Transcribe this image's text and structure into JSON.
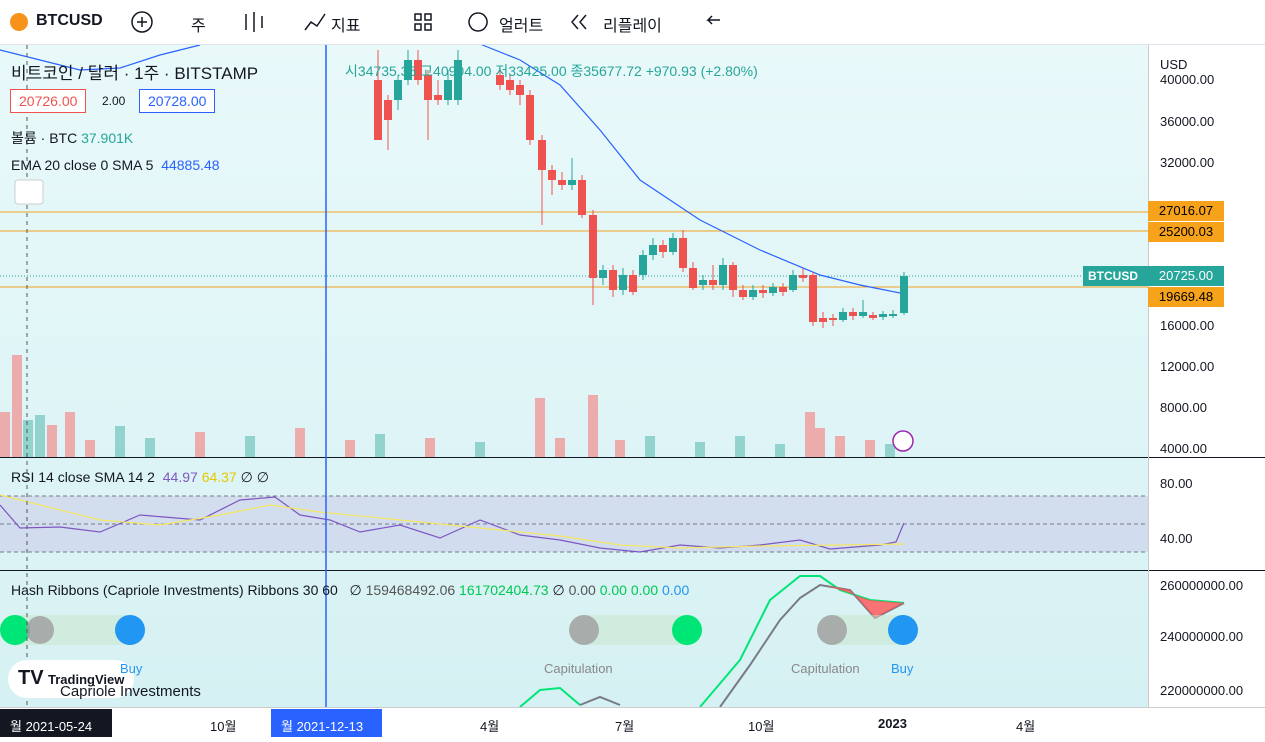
{
  "toolbar": {
    "symbol": "BTCUSD",
    "interval": "주",
    "indicators": "지표",
    "alerts": "얼러트",
    "replay": "리플레이"
  },
  "legend": {
    "title": "비트코인 / 달러 · 1주 · BITSTAMP",
    "open": "시34735.35",
    "high": "고40904.00",
    "low": "저33425.00",
    "close": "종35677.72",
    "change": "+970.93 (+2.80%)",
    "bid": "20726.00",
    "spread": "2.00",
    "ask": "20728.00",
    "volume_label": "볼륨 · BTC",
    "volume": "37.901K",
    "ema_label": "EMA 20 close 0 SMA 5",
    "ema": "44885.48"
  },
  "price_axis": {
    "currency": "USD",
    "ticks": [
      "40000.00",
      "36000.00",
      "32000.00",
      "16000.00",
      "12000.00",
      "8000.00",
      "4000.00"
    ],
    "levels": [
      "27016.07",
      "25200.03",
      "19669.48"
    ],
    "symbol_tag": "BTCUSD",
    "last_price": "20725.00"
  },
  "rsi": {
    "label": "RSI 14 close SMA 14 2",
    "value": "44.97",
    "sma": "64.37",
    "extra": "∅ ∅",
    "ticks": [
      "80.00",
      "40.00"
    ]
  },
  "hash_ribbons": {
    "label": "Hash Ribbons (Capriole Investments) Ribbons 30 60",
    "v1": "∅",
    "v2": "159468492.06",
    "v3": "161702404.73",
    "v4": "∅",
    "v5": "0.00",
    "v6": "0.00",
    "v7": "0.00",
    "v8": "0.00",
    "ticks": [
      "260000000.00",
      "240000000.00",
      "220000000.00"
    ],
    "markers": [
      "Capitulation",
      "Capitulation",
      "Buy",
      "Buy"
    ],
    "watermark": "Capriole Investments"
  },
  "time_axis": {
    "cursor_left": "월 2021-05-24",
    "cursor": "월 2021-12-13",
    "labels": [
      "10월",
      "4월",
      "7월",
      "10월",
      "2023",
      "4월"
    ]
  },
  "branding": "TradingView"
}
